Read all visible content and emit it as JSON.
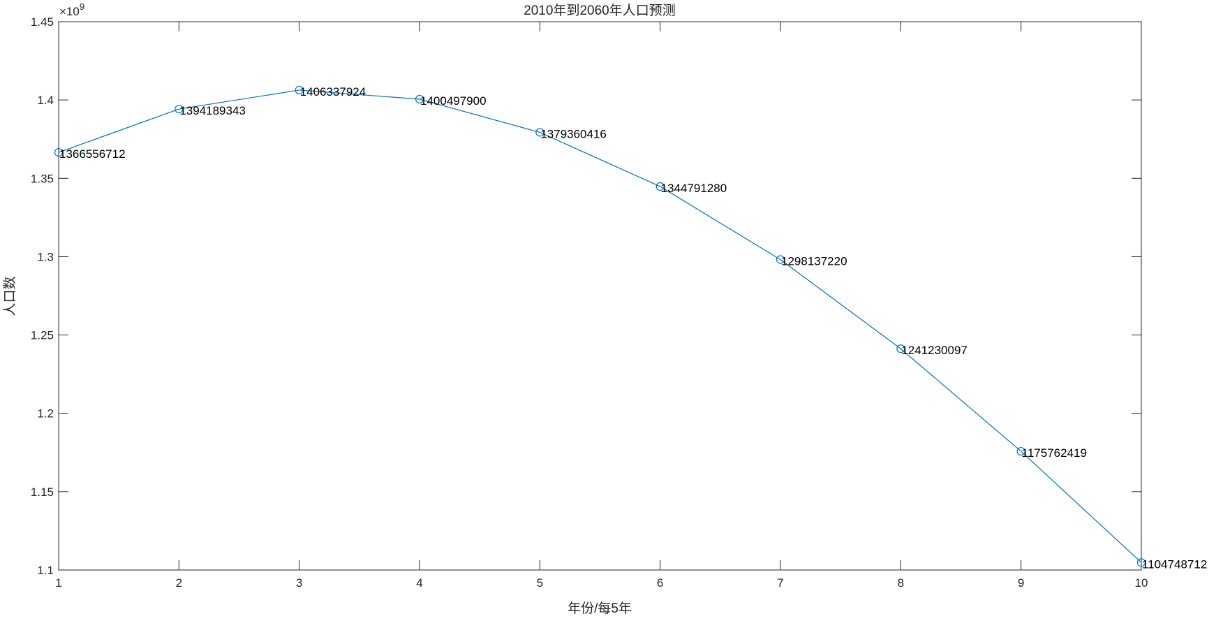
{
  "chart_data": {
    "type": "line",
    "title": "2010年到2060年人口预测",
    "xlabel": "年份/每5年",
    "ylabel": "人口数",
    "exponent_label": "×10",
    "exponent_power": "9",
    "x": [
      1,
      2,
      3,
      4,
      5,
      6,
      7,
      8,
      9,
      10
    ],
    "series": [
      {
        "values": [
          1366556712,
          1394189343,
          1406337924,
          1400497900,
          1379360416,
          1344791280,
          1298137220,
          1241230097,
          1175762419,
          1104748712
        ],
        "labels": [
          "1366556712",
          "1394189343",
          "1406337924",
          "1400497900",
          "1379360416",
          "1344791280",
          "1298137220",
          "1241230097",
          "1175762419",
          "1104748712"
        ],
        "marker": "circle",
        "color": "#0072BD"
      }
    ],
    "xlim": [
      1,
      10
    ],
    "ylim": [
      1100000000,
      1450000000
    ],
    "xticks": [
      "1",
      "2",
      "3",
      "4",
      "5",
      "6",
      "7",
      "8",
      "9",
      "10"
    ],
    "yticks_values": [
      1100000000,
      1150000000,
      1200000000,
      1250000000,
      1300000000,
      1350000000,
      1400000000,
      1450000000
    ],
    "yticks": [
      "1.1",
      "1.15",
      "1.2",
      "1.25",
      "1.3",
      "1.35",
      "1.4",
      "1.45"
    ],
    "grid": false,
    "box": true
  }
}
